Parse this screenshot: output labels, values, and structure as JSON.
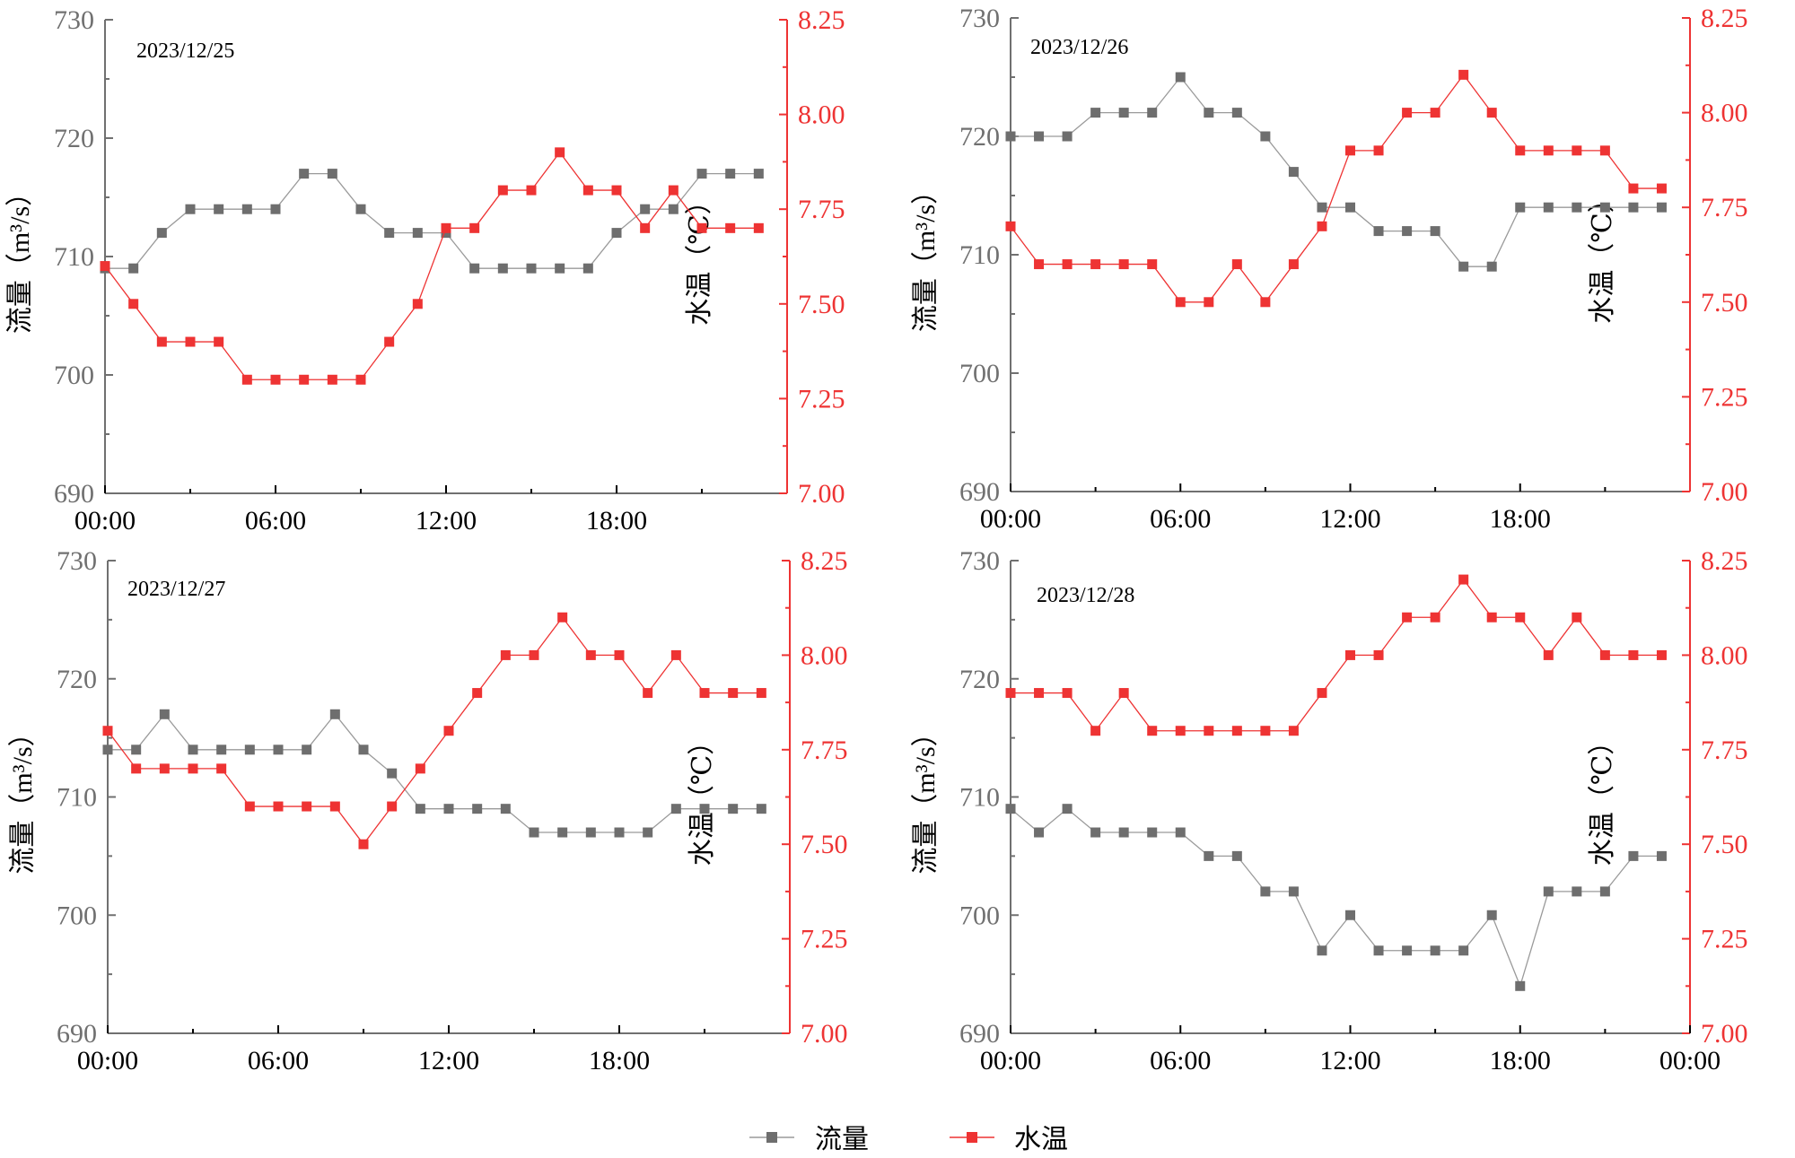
{
  "legend": {
    "flow_label": "流量",
    "temp_label": "水温"
  },
  "colors": {
    "flow": "#6e6e6e",
    "flow_line": "#9a9a9a",
    "temp": "#ee3333",
    "axis_left": "#707070",
    "axis_right": "#ee3333"
  },
  "chart_data": [
    {
      "type": "line",
      "date_label": "2023/12/25",
      "x_hours": [
        0,
        1,
        2,
        3,
        4,
        5,
        6,
        7,
        8,
        9,
        10,
        11,
        12,
        13,
        14,
        15,
        16,
        17,
        18,
        19,
        20,
        21,
        22,
        23
      ],
      "x_ticks": [
        "00:00",
        "06:00",
        "12:00",
        "18:00"
      ],
      "x_range_hours": [
        0,
        24
      ],
      "y_left": {
        "label": "流量（m³/s）",
        "range": [
          690,
          730
        ],
        "ticks": [
          "690",
          "700",
          "710",
          "720",
          "730"
        ]
      },
      "y_right": {
        "label": "水温（℃）",
        "range": [
          7.0,
          8.25
        ],
        "ticks": [
          "7.00",
          "7.25",
          "7.50",
          "7.75",
          "8.00",
          "8.25"
        ]
      },
      "series": [
        {
          "name": "流量",
          "axis": "left",
          "values": [
            709,
            709,
            712,
            714,
            714,
            714,
            714,
            717,
            717,
            714,
            712,
            712,
            712,
            709,
            709,
            709,
            709,
            709,
            712,
            714,
            714,
            717,
            717,
            717
          ]
        },
        {
          "name": "水温",
          "axis": "right",
          "values": [
            7.6,
            7.5,
            7.4,
            7.4,
            7.4,
            7.3,
            7.3,
            7.3,
            7.3,
            7.3,
            7.4,
            7.5,
            7.7,
            7.7,
            7.8,
            7.8,
            7.9,
            7.8,
            7.8,
            7.7,
            7.8,
            7.7,
            7.7,
            7.7
          ]
        }
      ]
    },
    {
      "type": "line",
      "date_label": "2023/12/26",
      "x_hours": [
        0,
        1,
        2,
        3,
        4,
        5,
        6,
        7,
        8,
        9,
        10,
        11,
        12,
        13,
        14,
        15,
        16,
        17,
        18,
        19,
        20,
        21,
        22,
        23
      ],
      "x_ticks": [
        "00:00",
        "06:00",
        "12:00",
        "18:00"
      ],
      "x_range_hours": [
        0,
        24
      ],
      "y_left": {
        "label": "流量（m³/s）",
        "range": [
          690,
          730
        ],
        "ticks": [
          "690",
          "700",
          "710",
          "720",
          "730"
        ]
      },
      "y_right": {
        "label": "水温（℃）",
        "range": [
          7.0,
          8.25
        ],
        "ticks": [
          "7.00",
          "7.25",
          "7.50",
          "7.75",
          "8.00",
          "8.25"
        ]
      },
      "series": [
        {
          "name": "流量",
          "axis": "left",
          "values": [
            720,
            720,
            720,
            722,
            722,
            722,
            725,
            722,
            722,
            720,
            717,
            714,
            714,
            712,
            712,
            712,
            709,
            709,
            714,
            714,
            714,
            714,
            714,
            714
          ]
        },
        {
          "name": "水温",
          "axis": "right",
          "values": [
            7.7,
            7.6,
            7.6,
            7.6,
            7.6,
            7.6,
            7.5,
            7.5,
            7.6,
            7.5,
            7.6,
            7.7,
            7.9,
            7.9,
            8.0,
            8.0,
            8.1,
            8.0,
            7.9,
            7.9,
            7.9,
            7.9,
            7.8,
            7.8
          ]
        }
      ]
    },
    {
      "type": "line",
      "date_label": "2023/12/27",
      "x_hours": [
        0,
        1,
        2,
        3,
        4,
        5,
        6,
        7,
        8,
        9,
        10,
        11,
        12,
        13,
        14,
        15,
        16,
        17,
        18,
        19,
        20,
        21,
        22,
        23
      ],
      "x_ticks": [
        "00:00",
        "06:00",
        "12:00",
        "18:00"
      ],
      "x_range_hours": [
        0,
        24
      ],
      "y_left": {
        "label": "流量（m³/s）",
        "range": [
          690,
          730
        ],
        "ticks": [
          "690",
          "700",
          "710",
          "720",
          "730"
        ]
      },
      "y_right": {
        "label": "水温（℃）",
        "range": [
          7.0,
          8.25
        ],
        "ticks": [
          "7.00",
          "7.25",
          "7.50",
          "7.75",
          "8.00",
          "8.25"
        ]
      },
      "series": [
        {
          "name": "流量",
          "axis": "left",
          "values": [
            714,
            714,
            717,
            714,
            714,
            714,
            714,
            714,
            717,
            714,
            712,
            709,
            709,
            709,
            709,
            707,
            707,
            707,
            707,
            707,
            709,
            709,
            709,
            709
          ]
        },
        {
          "name": "水温",
          "axis": "right",
          "values": [
            7.8,
            7.7,
            7.7,
            7.7,
            7.7,
            7.6,
            7.6,
            7.6,
            7.6,
            7.5,
            7.6,
            7.7,
            7.8,
            7.9,
            8.0,
            8.0,
            8.1,
            8.0,
            8.0,
            7.9,
            8.0,
            7.9,
            7.9,
            7.9
          ]
        }
      ]
    },
    {
      "type": "line",
      "date_label": "2023/12/28",
      "x_hours": [
        0,
        1,
        2,
        3,
        4,
        5,
        6,
        7,
        8,
        9,
        10,
        11,
        12,
        13,
        14,
        15,
        16,
        17,
        18,
        19,
        20,
        21,
        22,
        23
      ],
      "x_ticks": [
        "00:00",
        "06:00",
        "12:00",
        "18:00",
        "00:00"
      ],
      "x_range_hours": [
        0,
        24
      ],
      "y_left": {
        "label": "流量（m³/s）",
        "range": [
          690,
          730
        ],
        "ticks": [
          "690",
          "700",
          "710",
          "720",
          "730"
        ]
      },
      "y_right": {
        "label": "水温（℃）",
        "range": [
          7.0,
          8.25
        ],
        "ticks": [
          "7.00",
          "7.25",
          "7.50",
          "7.75",
          "8.00",
          "8.25"
        ]
      },
      "series": [
        {
          "name": "流量",
          "axis": "left",
          "values": [
            709,
            707,
            709,
            707,
            707,
            707,
            707,
            705,
            705,
            702,
            702,
            697,
            700,
            697,
            697,
            697,
            697,
            700,
            694,
            702,
            702,
            702,
            705,
            705
          ]
        },
        {
          "name": "水温",
          "axis": "right",
          "values": [
            7.9,
            7.9,
            7.9,
            7.8,
            7.9,
            7.8,
            7.8,
            7.8,
            7.8,
            7.8,
            7.8,
            7.9,
            8.0,
            8.0,
            8.1,
            8.1,
            8.2,
            8.1,
            8.1,
            8.0,
            8.1,
            8.0,
            8.0,
            8.0
          ]
        }
      ]
    }
  ]
}
